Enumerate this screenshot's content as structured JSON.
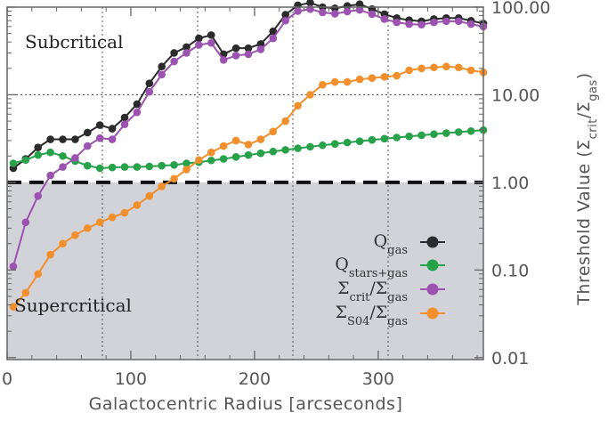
{
  "chart_data": {
    "type": "line",
    "title": "",
    "xlabel": "Galactocentric Radius [arcseconds]",
    "ylabel": "Threshold Value",
    "ylabel_math": {
      "base": "Σ",
      "num_sub": "crit",
      "den_sub": "gas"
    },
    "xlim": [
      0,
      385
    ],
    "ylim": [
      0.0095,
      100
    ],
    "y_scale": "log",
    "x_ticks": [
      0,
      100,
      200,
      300
    ],
    "x_tick_labels": [
      "0",
      "100",
      "200",
      "300"
    ],
    "y_ticks": [
      0.01,
      0.1,
      1,
      10,
      100
    ],
    "y_tick_labels": [
      "0.01",
      "0.10",
      "1.00",
      "10.00",
      "100.00"
    ],
    "threshold": {
      "value": 1.0,
      "style": "dashed"
    },
    "shaded_region": {
      "from": 0.0095,
      "to": 1.0,
      "color": "#d1d3d9"
    },
    "region_labels": {
      "above": "Subcritical",
      "below": "Supercritical"
    },
    "grid": "dotted",
    "legend_position": "lower-right",
    "x": [
      5,
      15,
      25,
      35,
      45,
      55,
      65,
      75,
      85,
      95,
      105,
      115,
      125,
      135,
      145,
      155,
      165,
      175,
      185,
      195,
      205,
      215,
      225,
      235,
      245,
      255,
      265,
      275,
      285,
      295,
      305,
      315,
      325,
      335,
      345,
      355,
      365,
      375,
      385
    ],
    "series": [
      {
        "label_base": "Q",
        "label_sub": "gas",
        "color": "#2b2b2b",
        "values": [
          1.45,
          1.85,
          2.5,
          3.1,
          3.1,
          3.1,
          3.7,
          4.5,
          4.1,
          5.5,
          7.8,
          13.5,
          21,
          30,
          35,
          44,
          48,
          29,
          34,
          34,
          38,
          53,
          82,
          105,
          112,
          100,
          97,
          103,
          108,
          95,
          83,
          75,
          71,
          69,
          73,
          75,
          75,
          70,
          65
        ]
      },
      {
        "label_base": "Q",
        "label_sub": "stars+gas",
        "color": "#27a14a",
        "values": [
          1.65,
          1.8,
          2.05,
          2.2,
          2.0,
          1.75,
          1.55,
          1.45,
          1.48,
          1.5,
          1.5,
          1.52,
          1.55,
          1.58,
          1.65,
          1.7,
          1.78,
          1.85,
          1.95,
          2.05,
          2.15,
          2.25,
          2.35,
          2.45,
          2.55,
          2.65,
          2.75,
          2.85,
          2.95,
          3.05,
          3.15,
          3.25,
          3.35,
          3.45,
          3.55,
          3.65,
          3.75,
          3.85,
          3.95
        ]
      },
      {
        "label_base": "Σ",
        "label_sub": "crit",
        "label_den_sub": "gas",
        "color": "#9b52b0",
        "values": [
          0.11,
          0.35,
          0.7,
          1.2,
          1.5,
          1.9,
          2.6,
          3.2,
          3.1,
          4.6,
          6.3,
          10.8,
          17,
          24,
          30,
          37,
          39,
          25,
          28,
          29,
          33,
          44,
          70,
          90,
          95,
          87,
          84,
          89,
          93,
          83,
          73,
          67,
          64,
          63,
          67,
          69,
          69,
          64,
          60
        ]
      },
      {
        "label_base": "Σ",
        "label_sub": "S04",
        "label_den_sub": "gas",
        "color": "#f28f2d",
        "values": [
          0.038,
          0.055,
          0.09,
          0.15,
          0.2,
          0.25,
          0.3,
          0.35,
          0.4,
          0.45,
          0.55,
          0.7,
          0.9,
          1.1,
          1.4,
          1.8,
          2.2,
          2.6,
          3.0,
          2.7,
          3.1,
          3.8,
          5.0,
          7.5,
          10,
          13,
          14,
          14,
          15,
          15.5,
          16,
          16.5,
          19,
          20,
          20.5,
          21,
          20.5,
          19,
          18
        ]
      }
    ]
  }
}
